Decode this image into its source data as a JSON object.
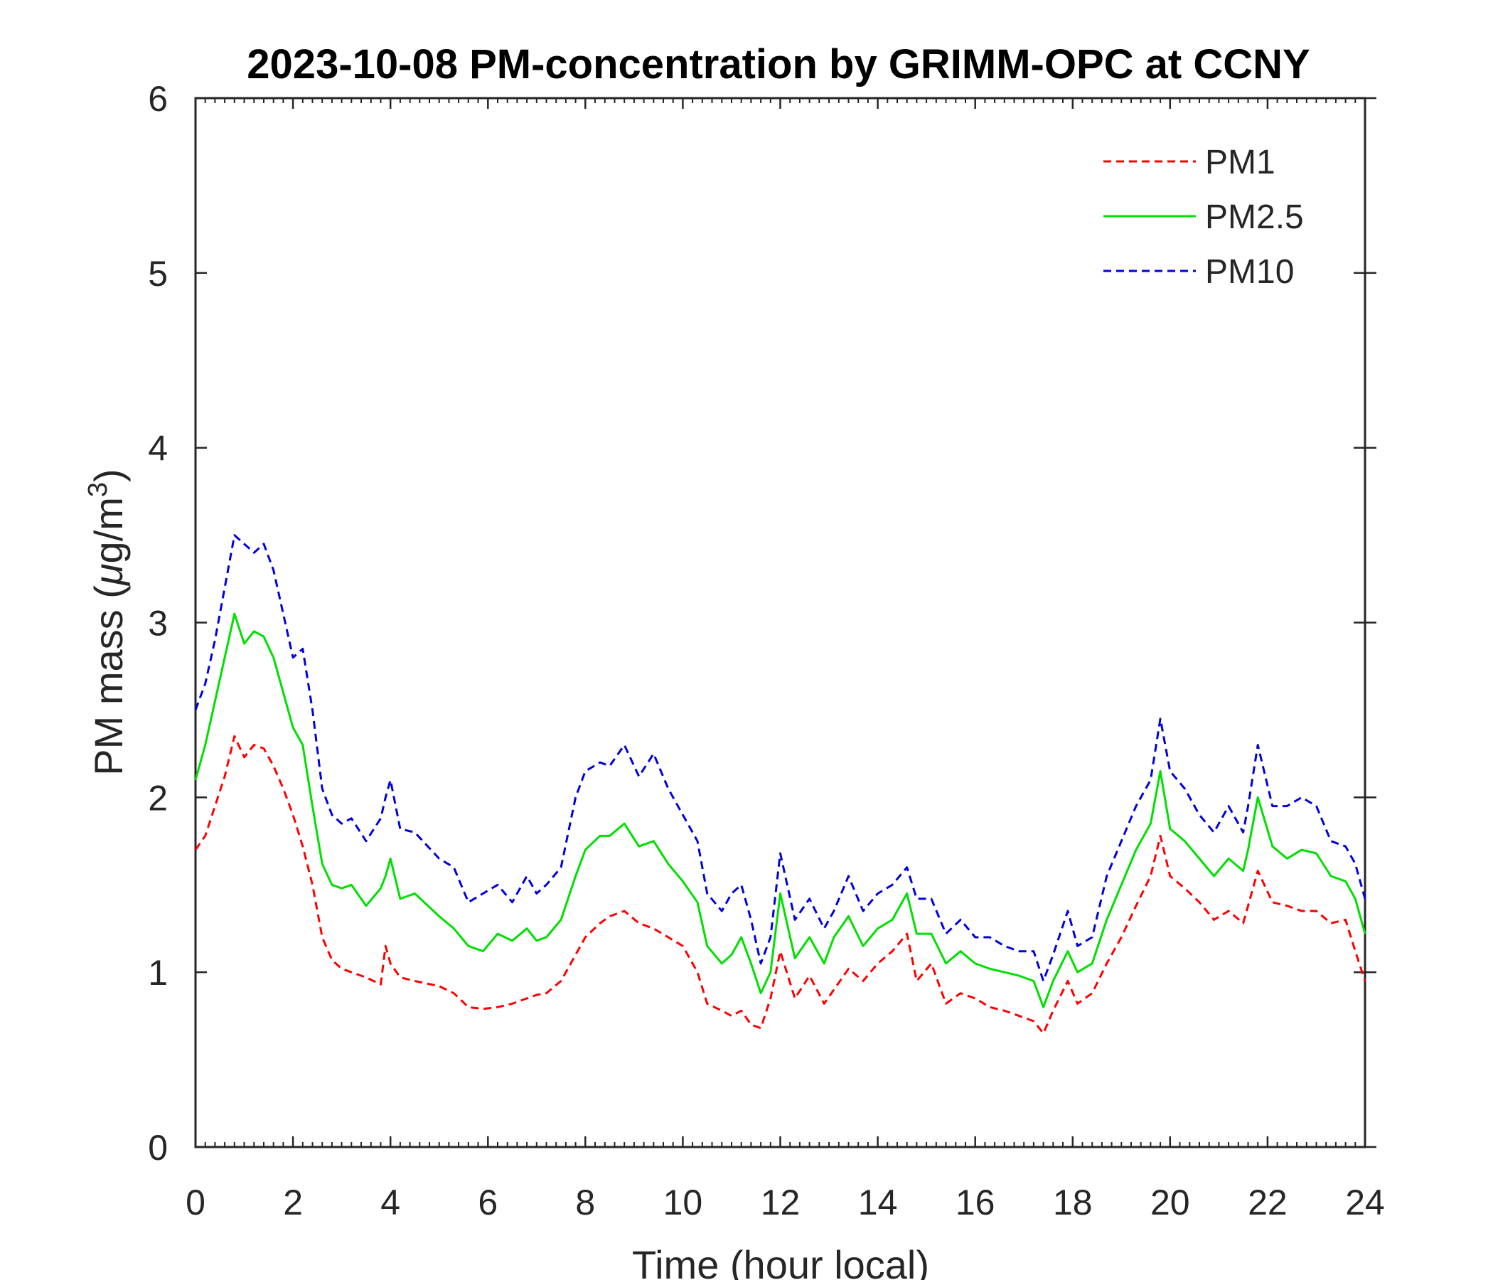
{
  "chart_data": {
    "type": "line",
    "title": "2023-10-08 PM-concentration by GRIMM-OPC at CCNY",
    "xlabel": "Time (hour local)",
    "ylabel": {
      "prefix": "PM mass (",
      "mu": "μ",
      "unit": "g/m",
      "sup": "3",
      "suffix": ")"
    },
    "xlim": [
      0,
      24
    ],
    "ylim": [
      0,
      6
    ],
    "xticks": [
      0,
      2,
      4,
      6,
      8,
      10,
      12,
      14,
      16,
      18,
      20,
      22,
      24
    ],
    "yticks": [
      0,
      1,
      2,
      3,
      4,
      5,
      6
    ],
    "legend_position": "top-right",
    "series": [
      {
        "name": "PM1",
        "color": "#ff0000",
        "style": "dashed",
        "x": [
          0,
          0.2,
          0.4,
          0.6,
          0.8,
          1.0,
          1.2,
          1.4,
          1.6,
          1.8,
          2.0,
          2.2,
          2.4,
          2.6,
          2.8,
          3.0,
          3.2,
          3.5,
          3.8,
          3.9,
          4.0,
          4.2,
          4.5,
          5.0,
          5.3,
          5.6,
          5.9,
          6.2,
          6.5,
          6.8,
          7.0,
          7.2,
          7.5,
          7.8,
          8.0,
          8.3,
          8.5,
          8.8,
          9.1,
          9.4,
          9.7,
          10.0,
          10.3,
          10.5,
          10.8,
          11.0,
          11.2,
          11.4,
          11.6,
          11.8,
          12.0,
          12.3,
          12.6,
          12.9,
          13.1,
          13.4,
          13.7,
          14.0,
          14.3,
          14.6,
          14.8,
          15.1,
          15.4,
          15.7,
          16.0,
          16.3,
          16.6,
          16.9,
          17.2,
          17.4,
          17.6,
          17.9,
          18.1,
          18.4,
          18.7,
          19.0,
          19.3,
          19.6,
          19.8,
          20.0,
          20.3,
          20.6,
          20.9,
          21.2,
          21.5,
          21.6,
          21.8,
          22.1,
          22.4,
          22.7,
          23.0,
          23.3,
          23.6,
          23.8,
          24.0
        ],
        "y": [
          1.7,
          1.78,
          1.95,
          2.12,
          2.35,
          2.23,
          2.3,
          2.28,
          2.18,
          2.05,
          1.9,
          1.72,
          1.5,
          1.2,
          1.07,
          1.02,
          1.0,
          0.97,
          0.93,
          1.15,
          1.05,
          0.97,
          0.95,
          0.92,
          0.88,
          0.8,
          0.79,
          0.8,
          0.82,
          0.85,
          0.87,
          0.88,
          0.95,
          1.1,
          1.2,
          1.28,
          1.32,
          1.35,
          1.28,
          1.25,
          1.2,
          1.15,
          1.0,
          0.82,
          0.78,
          0.75,
          0.78,
          0.7,
          0.68,
          0.85,
          1.12,
          0.85,
          0.98,
          0.82,
          0.9,
          1.02,
          0.95,
          1.05,
          1.12,
          1.22,
          0.95,
          1.05,
          0.82,
          0.88,
          0.85,
          0.8,
          0.78,
          0.75,
          0.72,
          0.65,
          0.78,
          0.95,
          0.82,
          0.88,
          1.05,
          1.2,
          1.38,
          1.55,
          1.78,
          1.55,
          1.48,
          1.4,
          1.3,
          1.35,
          1.28,
          1.38,
          1.58,
          1.4,
          1.38,
          1.35,
          1.35,
          1.28,
          1.3,
          1.12,
          0.95
        ]
      },
      {
        "name": "PM2.5",
        "color": "#00e000",
        "style": "solid",
        "x": [
          0,
          0.2,
          0.4,
          0.6,
          0.8,
          1.0,
          1.2,
          1.4,
          1.6,
          1.8,
          2.0,
          2.2,
          2.4,
          2.6,
          2.8,
          3.0,
          3.2,
          3.5,
          3.8,
          3.9,
          4.0,
          4.2,
          4.5,
          5.0,
          5.3,
          5.6,
          5.9,
          6.2,
          6.5,
          6.8,
          7.0,
          7.2,
          7.5,
          7.8,
          8.0,
          8.3,
          8.5,
          8.8,
          9.1,
          9.4,
          9.7,
          10.0,
          10.3,
          10.5,
          10.8,
          11.0,
          11.2,
          11.4,
          11.6,
          11.8,
          12.0,
          12.3,
          12.6,
          12.9,
          13.1,
          13.4,
          13.7,
          14.0,
          14.3,
          14.6,
          14.8,
          15.1,
          15.4,
          15.7,
          16.0,
          16.3,
          16.6,
          16.9,
          17.2,
          17.4,
          17.6,
          17.9,
          18.1,
          18.4,
          18.7,
          19.0,
          19.3,
          19.6,
          19.8,
          20.0,
          20.3,
          20.6,
          20.9,
          21.2,
          21.5,
          21.6,
          21.8,
          22.1,
          22.4,
          22.7,
          23.0,
          23.3,
          23.6,
          23.8,
          24.0
        ],
        "y": [
          2.1,
          2.3,
          2.55,
          2.8,
          3.05,
          2.88,
          2.95,
          2.92,
          2.8,
          2.6,
          2.4,
          2.3,
          1.95,
          1.62,
          1.5,
          1.48,
          1.5,
          1.38,
          1.48,
          1.55,
          1.65,
          1.42,
          1.45,
          1.32,
          1.25,
          1.15,
          1.12,
          1.22,
          1.18,
          1.25,
          1.18,
          1.2,
          1.3,
          1.55,
          1.7,
          1.78,
          1.78,
          1.85,
          1.72,
          1.75,
          1.62,
          1.52,
          1.4,
          1.15,
          1.05,
          1.1,
          1.2,
          1.05,
          0.88,
          1.0,
          1.45,
          1.08,
          1.2,
          1.05,
          1.2,
          1.32,
          1.15,
          1.25,
          1.3,
          1.45,
          1.22,
          1.22,
          1.05,
          1.12,
          1.05,
          1.02,
          1.0,
          0.98,
          0.95,
          0.8,
          0.95,
          1.12,
          1.0,
          1.05,
          1.3,
          1.5,
          1.7,
          1.85,
          2.15,
          1.82,
          1.75,
          1.65,
          1.55,
          1.65,
          1.58,
          1.7,
          2.0,
          1.72,
          1.65,
          1.7,
          1.68,
          1.55,
          1.52,
          1.42,
          1.22
        ]
      },
      {
        "name": "PM10",
        "color": "#0000dd",
        "style": "dashed",
        "x": [
          0,
          0.2,
          0.4,
          0.6,
          0.8,
          1.0,
          1.2,
          1.4,
          1.6,
          1.8,
          2.0,
          2.2,
          2.4,
          2.6,
          2.8,
          3.0,
          3.2,
          3.5,
          3.8,
          3.9,
          4.0,
          4.2,
          4.5,
          5.0,
          5.3,
          5.6,
          5.9,
          6.2,
          6.5,
          6.8,
          7.0,
          7.2,
          7.5,
          7.8,
          8.0,
          8.3,
          8.5,
          8.8,
          9.1,
          9.4,
          9.7,
          10.0,
          10.3,
          10.5,
          10.8,
          11.0,
          11.2,
          11.4,
          11.6,
          11.8,
          12.0,
          12.3,
          12.6,
          12.9,
          13.1,
          13.4,
          13.7,
          14.0,
          14.3,
          14.6,
          14.8,
          15.1,
          15.4,
          15.7,
          16.0,
          16.3,
          16.6,
          16.9,
          17.2,
          17.4,
          17.6,
          17.9,
          18.1,
          18.4,
          18.7,
          19.0,
          19.3,
          19.6,
          19.8,
          20.0,
          20.3,
          20.6,
          20.9,
          21.2,
          21.5,
          21.6,
          21.8,
          22.1,
          22.4,
          22.7,
          23.0,
          23.3,
          23.6,
          23.8,
          24.0
        ],
        "y": [
          2.5,
          2.65,
          2.9,
          3.2,
          3.5,
          3.45,
          3.4,
          3.45,
          3.3,
          3.05,
          2.8,
          2.85,
          2.5,
          2.05,
          1.9,
          1.85,
          1.88,
          1.75,
          1.88,
          2.0,
          2.1,
          1.82,
          1.8,
          1.65,
          1.6,
          1.4,
          1.45,
          1.5,
          1.4,
          1.55,
          1.45,
          1.5,
          1.6,
          2.0,
          2.15,
          2.2,
          2.18,
          2.3,
          2.12,
          2.25,
          2.05,
          1.9,
          1.75,
          1.45,
          1.35,
          1.45,
          1.5,
          1.3,
          1.05,
          1.2,
          1.68,
          1.3,
          1.42,
          1.25,
          1.35,
          1.55,
          1.35,
          1.45,
          1.5,
          1.6,
          1.42,
          1.42,
          1.22,
          1.3,
          1.2,
          1.2,
          1.15,
          1.12,
          1.12,
          0.95,
          1.1,
          1.35,
          1.15,
          1.2,
          1.55,
          1.75,
          1.95,
          2.1,
          2.45,
          2.15,
          2.05,
          1.9,
          1.8,
          1.95,
          1.8,
          1.95,
          2.3,
          1.95,
          1.95,
          2.0,
          1.95,
          1.75,
          1.72,
          1.62,
          1.42
        ]
      }
    ]
  }
}
